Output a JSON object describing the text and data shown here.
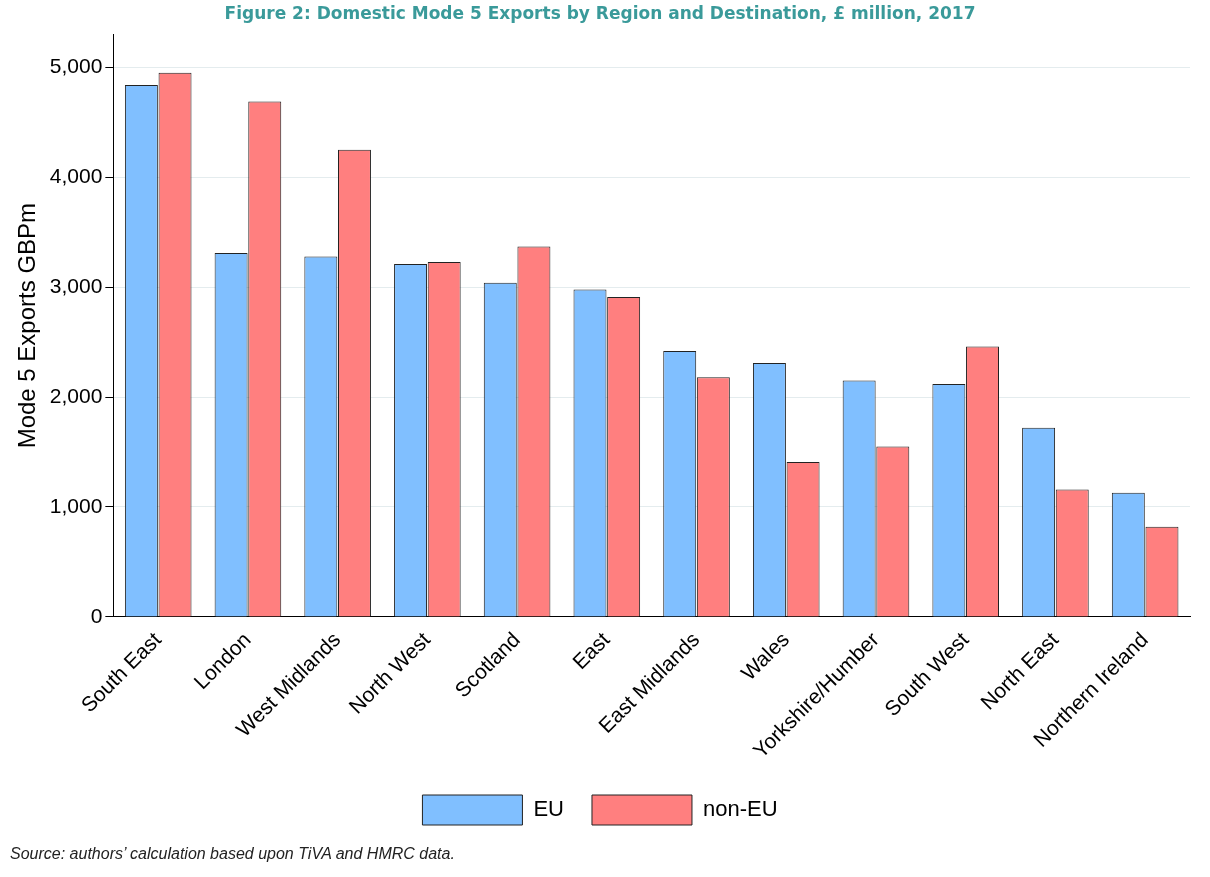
{
  "chart_data": {
    "type": "bar",
    "title": "Figure 2: Domestic Mode 5 Exports by Region and Destination, £ million, 2017",
    "ylabel": "Mode 5 Exports GBPm",
    "categories": [
      "South East",
      "London",
      "West Midlands",
      "North West",
      "Scotland",
      "East",
      "East Midlands",
      "Wales",
      "Yorkshire/Humber",
      "South West",
      "North East",
      "Northern Ireland"
    ],
    "series": [
      {
        "name": "EU",
        "color": "#80bfff",
        "values": [
          4840,
          3310,
          3280,
          3210,
          3040,
          2980,
          2420,
          2310,
          2150,
          2120,
          1720,
          1130
        ]
      },
      {
        "name": "non-EU",
        "color": "#ff7f7f",
        "values": [
          4950,
          4690,
          4250,
          3230,
          3370,
          2910,
          2180,
          1410,
          1550,
          2460,
          1160,
          820
        ]
      }
    ],
    "ylim": [
      0,
      5300
    ],
    "yticks": [
      0,
      {
        "value": 1000,
        "label": "1,000"
      },
      {
        "value": 2000,
        "label": "2,000"
      },
      {
        "value": 3000,
        "label": "3,000"
      },
      {
        "value": 4000,
        "label": "4,000"
      },
      {
        "value": 5000,
        "label": "5,000"
      }
    ],
    "grid": "y",
    "legend": "bottom",
    "annotations": [
      "Source: authors’ calculation based upon TiVA and HMRC data."
    ]
  }
}
